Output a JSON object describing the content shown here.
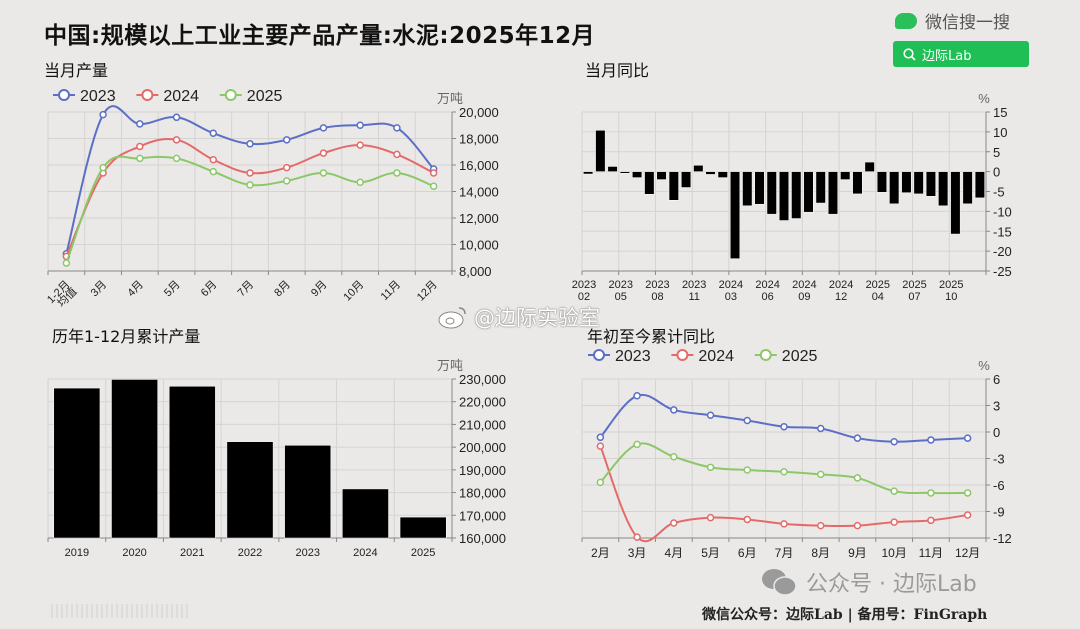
{
  "header": {
    "title": "中国:规模以上工业主要产品产量:水泥:2025年12月",
    "wechat_search_label": "微信搜一搜",
    "search_button_label": "边际Lab"
  },
  "watermarks": {
    "weibo": "@边际实验室",
    "wechat": "公众号 · 边际Lab"
  },
  "footer": {
    "text": "微信公众号：边际Lab  |  备用号：FinGraph"
  },
  "colors": {
    "2023": "#5b6fc7",
    "2024": "#e46a6a",
    "2025": "#8cc76a",
    "bar": "#000000",
    "grid": "#d6d4d2",
    "accent_green": "#1fbf55"
  },
  "panels": {
    "monthly": {
      "title": "当月产量",
      "unit": "万吨"
    },
    "yoy": {
      "title": "当月同比",
      "unit": "%"
    },
    "annual": {
      "title": "历年1-12月累计产量",
      "unit": "万吨"
    },
    "ytd": {
      "title": "年初至今累计同比",
      "unit": "%"
    }
  },
  "chart_data": [
    {
      "id": "monthly",
      "type": "line",
      "title": "当月产量",
      "ylabel": "万吨",
      "categories": [
        "1-2月均值",
        "3月",
        "4月",
        "5月",
        "6月",
        "7月",
        "8月",
        "9月",
        "10月",
        "11月",
        "12月"
      ],
      "ylim": [
        8000,
        20000
      ],
      "yticks": [
        8000,
        10000,
        12000,
        14000,
        16000,
        18000,
        20000
      ],
      "legend": [
        "2023",
        "2024",
        "2025"
      ],
      "legend_position": "top-left",
      "grid": true,
      "series": [
        {
          "name": "2023",
          "values": [
            9300,
            19800,
            19100,
            19600,
            18400,
            17600,
            17900,
            18800,
            19000,
            18800,
            15700
          ]
        },
        {
          "name": "2024",
          "values": [
            9100,
            15400,
            17400,
            17900,
            16400,
            15400,
            15800,
            16900,
            17500,
            16800,
            15400
          ]
        },
        {
          "name": "2025",
          "values": [
            8600,
            15800,
            16500,
            16500,
            15500,
            14500,
            14800,
            15400,
            14700,
            15400,
            14400
          ]
        }
      ]
    },
    {
      "id": "yoy",
      "type": "bar",
      "title": "当月同比",
      "ylabel": "%",
      "categories": [
        "2023-02",
        "2023-03",
        "2023-04",
        "2023-05",
        "2023-06",
        "2023-07",
        "2023-08",
        "2023-09",
        "2023-10",
        "2023-11",
        "2023-12",
        "2024-01",
        "2024-03",
        "2024-04",
        "2024-05",
        "2024-06",
        "2024-07",
        "2024-08",
        "2024-09",
        "2024-10",
        "2024-11",
        "2024-12",
        "2025-01",
        "2025-03",
        "2025-04",
        "2025-05",
        "2025-06",
        "2025-07",
        "2025-08",
        "2025-09",
        "2025-10",
        "2025-11",
        "2025-12"
      ],
      "xtick_labels": [
        {
          "idx": 0,
          "label": "2023\n02"
        },
        {
          "idx": 3,
          "label": "2023\n05"
        },
        {
          "idx": 6,
          "label": "2023\n08"
        },
        {
          "idx": 9,
          "label": "2023\n11"
        },
        {
          "idx": 12,
          "label": "2024\n03"
        },
        {
          "idx": 15,
          "label": "2024\n06"
        },
        {
          "idx": 18,
          "label": "2024\n09"
        },
        {
          "idx": 21,
          "label": "2024\n12"
        },
        {
          "idx": 24,
          "label": "2025\n04"
        },
        {
          "idx": 27,
          "label": "2025\n07"
        },
        {
          "idx": 30,
          "label": "2025\n10"
        }
      ],
      "values": [
        -0.6,
        10.4,
        1.3,
        -0.4,
        -1.5,
        -5.7,
        -2.0,
        -7.2,
        -4.0,
        1.6,
        -0.7,
        -1.5,
        -21.9,
        -8.6,
        -8.2,
        -10.7,
        -12.3,
        -11.8,
        -10.2,
        -7.9,
        -10.7,
        -2.0,
        -5.6,
        2.4,
        -5.2,
        -8.1,
        -5.3,
        -5.6,
        -6.2,
        -8.6,
        -15.7,
        -8.1,
        -6.6
      ],
      "ylim": [
        -25,
        15
      ],
      "yticks": [
        -25,
        -20,
        -15,
        -10,
        -5,
        0,
        5,
        10,
        15
      ],
      "grid": true
    },
    {
      "id": "annual",
      "type": "bar",
      "title": "历年1-12月累计产量",
      "ylabel": "万吨",
      "categories": [
        "2019",
        "2020",
        "2021",
        "2022",
        "2023",
        "2024",
        "2025"
      ],
      "values": [
        226000,
        229800,
        226800,
        202400,
        200800,
        181600,
        169200
      ],
      "ylim": [
        160000,
        230000
      ],
      "yticks": [
        160000,
        170000,
        180000,
        190000,
        200000,
        210000,
        220000,
        230000
      ],
      "grid": true
    },
    {
      "id": "ytd",
      "type": "line",
      "title": "年初至今累计同比",
      "ylabel": "%",
      "categories": [
        "2月",
        "3月",
        "4月",
        "5月",
        "6月",
        "7月",
        "8月",
        "9月",
        "10月",
        "11月",
        "12月"
      ],
      "ylim": [
        -12,
        6
      ],
      "yticks": [
        -12,
        -9,
        -6,
        -3,
        0,
        3,
        6
      ],
      "legend": [
        "2023",
        "2024",
        "2025"
      ],
      "legend_position": "top-left",
      "grid": true,
      "series": [
        {
          "name": "2023",
          "values": [
            -0.6,
            4.1,
            2.5,
            1.9,
            1.3,
            0.6,
            0.4,
            -0.7,
            -1.1,
            -0.9,
            -0.7
          ]
        },
        {
          "name": "2024",
          "values": [
            -1.6,
            -11.9,
            -10.3,
            -9.7,
            -9.9,
            -10.4,
            -10.6,
            -10.6,
            -10.2,
            -10.0,
            -9.4
          ]
        },
        {
          "name": "2025",
          "values": [
            -5.7,
            -1.4,
            -2.8,
            -4.0,
            -4.3,
            -4.5,
            -4.8,
            -5.2,
            -6.7,
            -6.9,
            -6.9
          ]
        }
      ]
    }
  ]
}
